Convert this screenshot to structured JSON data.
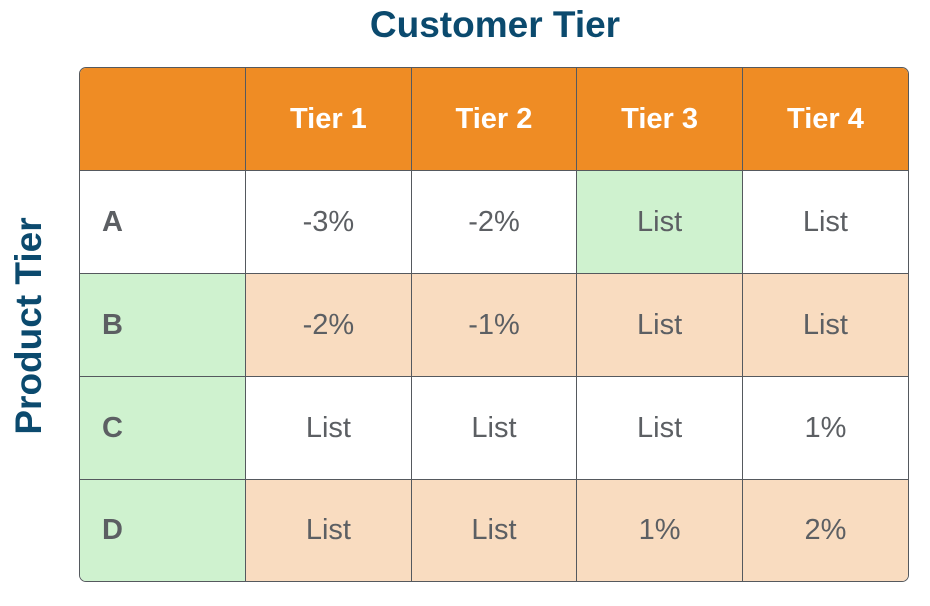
{
  "chart_data": {
    "type": "table",
    "title": "Customer Tier",
    "row_axis_label": "Product Tier",
    "columns": [
      "Tier 1",
      "Tier 2",
      "Tier 3",
      "Tier 4"
    ],
    "rows": [
      {
        "label": "A",
        "values": [
          "-3%",
          "-2%",
          "List",
          "List"
        ],
        "shaded": false,
        "highlight_col": 2
      },
      {
        "label": "B",
        "values": [
          "-2%",
          "-1%",
          "List",
          "List"
        ],
        "shaded": true,
        "highlight_col": -1
      },
      {
        "label": "C",
        "values": [
          "List",
          "List",
          "List",
          "1%"
        ],
        "shaded": false,
        "highlight_col": -1
      },
      {
        "label": "D",
        "values": [
          "List",
          "List",
          "1%",
          "2%"
        ],
        "shaded": true,
        "highlight_col": -1
      }
    ],
    "colors": {
      "header": "#ef8c24",
      "shaded_row": "#f9dcc0",
      "highlight_cell": "#cff2cf",
      "title": "#0b4a6e",
      "border": "#55595e"
    }
  }
}
